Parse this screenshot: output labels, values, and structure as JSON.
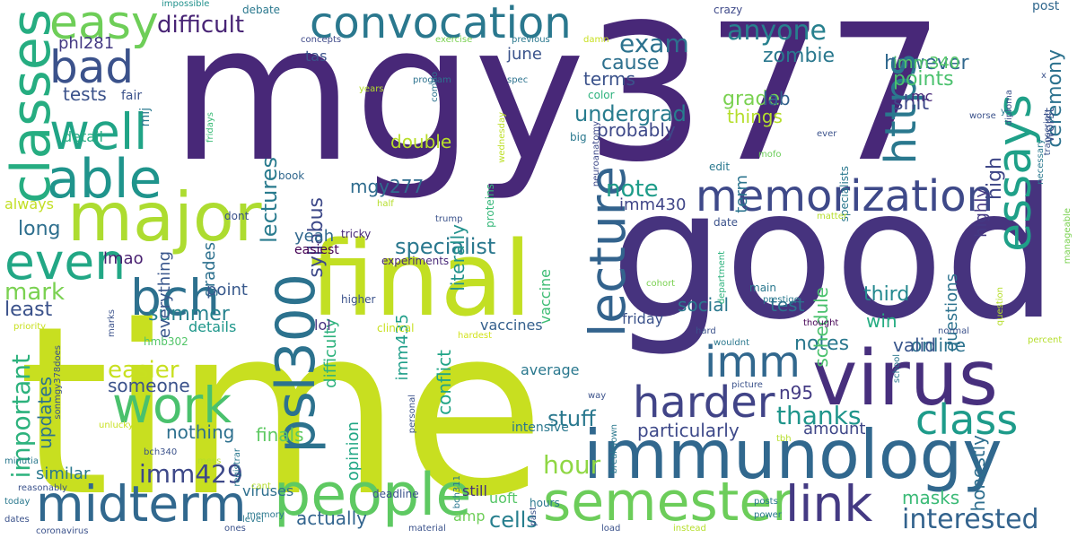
{
  "words": [
    {
      "text": "time",
      "color": "#c8df20"
    },
    {
      "text": "mgy377",
      "color": "#482878"
    },
    {
      "text": "good",
      "color": "#46337e"
    },
    {
      "text": "immunology",
      "color": "#31688e"
    },
    {
      "text": "virus",
      "color": "#472f7d"
    },
    {
      "text": "final",
      "color": "#c2df23"
    },
    {
      "text": "major",
      "color": "#addc30"
    },
    {
      "text": "people",
      "color": "#5ec962"
    },
    {
      "text": "psl300",
      "color": "#2c728e"
    },
    {
      "text": "memorization",
      "color": "#3e4989"
    },
    {
      "text": "convocation",
      "color": "#2a788e"
    },
    {
      "text": "midterm",
      "color": "#31688e"
    },
    {
      "text": "semester",
      "color": "#6ccd5a"
    },
    {
      "text": "classes",
      "color": "#26ad81"
    },
    {
      "text": "bch",
      "color": "#2d708e"
    },
    {
      "text": "work",
      "color": "#4ac16d"
    },
    {
      "text": "harder",
      "color": "#414487"
    },
    {
      "text": "well",
      "color": "#20a486"
    },
    {
      "text": "even",
      "color": "#22a785"
    },
    {
      "text": "able",
      "color": "#1f948c"
    },
    {
      "text": "bad",
      "color": "#3b528b"
    },
    {
      "text": "easy",
      "color": "#6ece58"
    },
    {
      "text": "class",
      "color": "#1e9b8a"
    },
    {
      "text": "link",
      "color": "#443a83"
    },
    {
      "text": "lecture",
      "color": "#33638d"
    },
    {
      "text": "essays",
      "color": "#1fa088"
    },
    {
      "text": "https",
      "color": "#2a788e"
    },
    {
      "text": "imm",
      "color": "#31688e"
    },
    {
      "text": "interested",
      "color": "#33638d"
    },
    {
      "text": "exam",
      "color": "#2c728e"
    },
    {
      "text": "anyone",
      "color": "#27808e"
    },
    {
      "text": "difficult",
      "color": "#482475"
    },
    {
      "text": "imm429",
      "color": "#3e4989"
    },
    {
      "text": "hour",
      "color": "#8fd744"
    },
    {
      "text": "cells",
      "color": "#277f8e"
    },
    {
      "text": "important",
      "color": "#2db27d"
    },
    {
      "text": "thanks",
      "color": "#1f958b"
    },
    {
      "text": "note",
      "color": "#1e9c89"
    },
    {
      "text": "specialist",
      "color": "#2a788e"
    },
    {
      "text": "undergrad",
      "color": "#287c8e"
    },
    {
      "text": "lectures",
      "color": "#297b8e"
    },
    {
      "text": "ceremony",
      "color": "#2c728e"
    },
    {
      "text": "mark",
      "color": "#7ad151"
    },
    {
      "text": "easier",
      "color": "#c8e020"
    },
    {
      "text": "stuff",
      "color": "#2a788e"
    },
    {
      "text": "however",
      "color": "#31688e"
    },
    {
      "text": "points",
      "color": "#4ac16d"
    },
    {
      "text": "zombie",
      "color": "#2a788e"
    },
    {
      "text": "cause",
      "color": "#2d708e"
    },
    {
      "text": "grade",
      "color": "#7ad151"
    },
    {
      "text": "tests",
      "color": "#3b528b"
    },
    {
      "text": "literally",
      "color": "#21918c"
    },
    {
      "text": "n95",
      "color": "#443b84"
    },
    {
      "text": "masks",
      "color": "#3aba76"
    },
    {
      "text": "long",
      "color": "#2e6f8e"
    },
    {
      "text": "summer",
      "color": "#26828e"
    },
    {
      "text": "least",
      "color": "#3b528b"
    },
    {
      "text": "shit",
      "color": "#3e4989"
    },
    {
      "text": "third",
      "color": "#23888e"
    },
    {
      "text": "syllabus",
      "color": "#3e4989"
    },
    {
      "text": "mgy277",
      "color": "#2f6c8e"
    },
    {
      "text": "imm340",
      "color": "#52c569"
    },
    {
      "text": "terms",
      "color": "#3b528b"
    },
    {
      "text": "high",
      "color": "#3f4788"
    },
    {
      "text": "highly",
      "color": "#443983"
    },
    {
      "text": "imm435",
      "color": "#1f9e89"
    },
    {
      "text": "honestly",
      "color": "#2e6e8e"
    },
    {
      "text": "particularly",
      "color": "#3e4989"
    },
    {
      "text": "actually",
      "color": "#32648e"
    },
    {
      "text": "notes",
      "color": "#2a788e"
    },
    {
      "text": "test",
      "color": "#2c728e"
    },
    {
      "text": "lab",
      "color": "#33638d"
    },
    {
      "text": "things",
      "color": "#b5de2b"
    },
    {
      "text": "finals",
      "color": "#5ec962"
    },
    {
      "text": "nothing",
      "color": "#2d708e"
    },
    {
      "text": "someone",
      "color": "#3b528b"
    },
    {
      "text": "updates",
      "color": "#2c728e"
    },
    {
      "text": "probably",
      "color": "#3e4989"
    },
    {
      "text": "schedule",
      "color": "#4ac16d"
    },
    {
      "text": "online",
      "color": "#2c728e"
    },
    {
      "text": "social",
      "color": "#2a788e"
    },
    {
      "text": "win",
      "color": "#25ac82"
    },
    {
      "text": "valid",
      "color": "#39568c"
    },
    {
      "text": "conflict",
      "color": "#20a486"
    },
    {
      "text": "double",
      "color": "#b8de29"
    },
    {
      "text": "grades",
      "color": "#2d708e"
    },
    {
      "text": "everything",
      "color": "#39568c"
    },
    {
      "text": "june",
      "color": "#3a538b"
    },
    {
      "text": "term",
      "color": "#2b748e"
    },
    {
      "text": "questions",
      "color": "#2c728e"
    },
    {
      "text": "amount",
      "color": "#3f4788"
    },
    {
      "text": "point",
      "color": "#38598c"
    },
    {
      "text": "difficulty",
      "color": "#2db27d"
    },
    {
      "text": "phl281",
      "color": "#443983"
    },
    {
      "text": "yeah",
      "color": "#31688e"
    },
    {
      "text": "lmao",
      "color": "#481f70"
    },
    {
      "text": "opinion",
      "color": "#22a785"
    },
    {
      "text": "vaccine",
      "color": "#3dbc74"
    },
    {
      "text": "imm430",
      "color": "#404688"
    },
    {
      "text": "similar",
      "color": "#2a788e"
    },
    {
      "text": "always",
      "color": "#c2df23"
    },
    {
      "text": "average",
      "color": "#2a788e"
    },
    {
      "text": "vaccines",
      "color": "#35608d"
    },
    {
      "text": "uoft",
      "color": "#56c667"
    },
    {
      "text": "viruses",
      "color": "#2e6f8e"
    },
    {
      "text": "amp",
      "color": "#6ece58"
    },
    {
      "text": "lol",
      "color": "#463480"
    },
    {
      "text": "details",
      "color": "#1f978b"
    },
    {
      "text": "detail",
      "color": "#25ab82"
    },
    {
      "text": "easiest",
      "color": "#440154"
    },
    {
      "text": "tas",
      "color": "#3b528b"
    },
    {
      "text": "experiments",
      "color": "#482878"
    },
    {
      "text": "specialists",
      "color": "#2a788e"
    },
    {
      "text": "worst",
      "color": "#3b528b"
    },
    {
      "text": "post",
      "color": "#31688e"
    },
    {
      "text": "friday",
      "color": "#3b528b"
    },
    {
      "text": "still",
      "color": "#46327e"
    },
    {
      "text": "intensive",
      "color": "#2a788e"
    },
    {
      "text": "mc",
      "color": "#482878"
    },
    {
      "text": "fair",
      "color": "#3b528b"
    },
    {
      "text": "mij",
      "color": "#2a788e"
    },
    {
      "text": "book",
      "color": "#31688e"
    },
    {
      "text": "debate",
      "color": "#2a788e"
    },
    {
      "text": "impossible",
      "color": "#21918c"
    },
    {
      "text": "crazy",
      "color": "#3e4989"
    },
    {
      "text": "program",
      "color": "#2c728e"
    },
    {
      "text": "spec",
      "color": "#2c728e"
    },
    {
      "text": "color",
      "color": "#2db27d"
    },
    {
      "text": "big",
      "color": "#2a788e"
    },
    {
      "text": "wednesday",
      "color": "#bddf26"
    },
    {
      "text": "proteins",
      "color": "#35b779"
    },
    {
      "text": "tricky",
      "color": "#482878"
    },
    {
      "text": "clinical",
      "color": "#c8e020"
    },
    {
      "text": "hardest",
      "color": "#d2e21b"
    },
    {
      "text": "concepts",
      "color": "#3e4989"
    },
    {
      "text": "exercise",
      "color": "#7ad151"
    },
    {
      "text": "previous",
      "color": "#2a788e"
    },
    {
      "text": "damn",
      "color": "#c8e020"
    },
    {
      "text": "fridays",
      "color": "#3aba76"
    },
    {
      "text": "years",
      "color": "#b5de2b"
    },
    {
      "text": "combo",
      "color": "#2c728e"
    },
    {
      "text": "neuroanatomy",
      "color": "#3e4989"
    },
    {
      "text": "mofo",
      "color": "#6ccd5a"
    },
    {
      "text": "edit",
      "color": "#2a788e"
    },
    {
      "text": "ever",
      "color": "#3b528b"
    },
    {
      "text": "date",
      "color": "#3b528b"
    },
    {
      "text": "department",
      "color": "#2db27d"
    },
    {
      "text": "matter",
      "color": "#b5de2b"
    },
    {
      "text": "cohort",
      "color": "#7ad151"
    },
    {
      "text": "main",
      "color": "#2a788e"
    },
    {
      "text": "prestige",
      "color": "#2a788e"
    },
    {
      "text": "trump",
      "color": "#3b528b"
    },
    {
      "text": "half",
      "color": "#b5de2b"
    },
    {
      "text": "dont",
      "color": "#3b528b"
    },
    {
      "text": "higher",
      "color": "#3b528b"
    },
    {
      "text": "priority",
      "color": "#c8e020"
    },
    {
      "text": "marks",
      "color": "#3b528b"
    },
    {
      "text": "hmb302",
      "color": "#52c569"
    },
    {
      "text": "sonmgy378does",
      "color": "#3b528b"
    },
    {
      "text": "unlucky",
      "color": "#c8e020"
    },
    {
      "text": "bch340",
      "color": "#3b528b"
    },
    {
      "text": "minutia",
      "color": "#2a788e"
    },
    {
      "text": "reasonably",
      "color": "#3b528b"
    },
    {
      "text": "mess",
      "color": "#b5de2b"
    },
    {
      "text": "cant",
      "color": "#b5de2b"
    },
    {
      "text": "level",
      "color": "#2a788e"
    },
    {
      "text": "memory",
      "color": "#2a788e"
    },
    {
      "text": "ones",
      "color": "#3b528b"
    },
    {
      "text": "today",
      "color": "#2a788e"
    },
    {
      "text": "dates",
      "color": "#3b528b"
    },
    {
      "text": "coronavirus",
      "color": "#3b528b"
    },
    {
      "text": "registrar",
      "color": "#2a788e"
    },
    {
      "text": "personal",
      "color": "#3b528b"
    },
    {
      "text": "bch311",
      "color": "#2a788e"
    },
    {
      "text": "deadline",
      "color": "#3b528b"
    },
    {
      "text": "past",
      "color": "#3b528b"
    },
    {
      "text": "material",
      "color": "#3b528b"
    },
    {
      "text": "hours",
      "color": "#2a788e"
    },
    {
      "text": "load",
      "color": "#3b528b"
    },
    {
      "text": "instead",
      "color": "#b5de2b"
    },
    {
      "text": "power",
      "color": "#2a788e"
    },
    {
      "text": "posts",
      "color": "#2a788e"
    },
    {
      "text": "breakdown",
      "color": "#2a788e"
    },
    {
      "text": "tbh",
      "color": "#b5de2b"
    },
    {
      "text": "way",
      "color": "#3b528b"
    },
    {
      "text": "picture",
      "color": "#3b528b"
    },
    {
      "text": "hard",
      "color": "#3b528b"
    },
    {
      "text": "wouldnt",
      "color": "#2a788e"
    },
    {
      "text": "thought",
      "color": "#440154"
    },
    {
      "text": "school",
      "color": "#2a788e"
    },
    {
      "text": "normal",
      "color": "#3b528b"
    },
    {
      "text": "percent",
      "color": "#b5de2b"
    },
    {
      "text": "question",
      "color": "#b5de2b"
    },
    {
      "text": "manageable",
      "color": "#7ad151"
    },
    {
      "text": "necessary",
      "color": "#2a788e"
    },
    {
      "text": "transcript",
      "color": "#3b528b"
    },
    {
      "text": "diploma",
      "color": "#3b528b"
    },
    {
      "text": "yo",
      "color": "#2a788e"
    },
    {
      "text": "x",
      "color": "#3b528b"
    },
    {
      "text": "worse",
      "color": "#3b528b"
    }
  ]
}
